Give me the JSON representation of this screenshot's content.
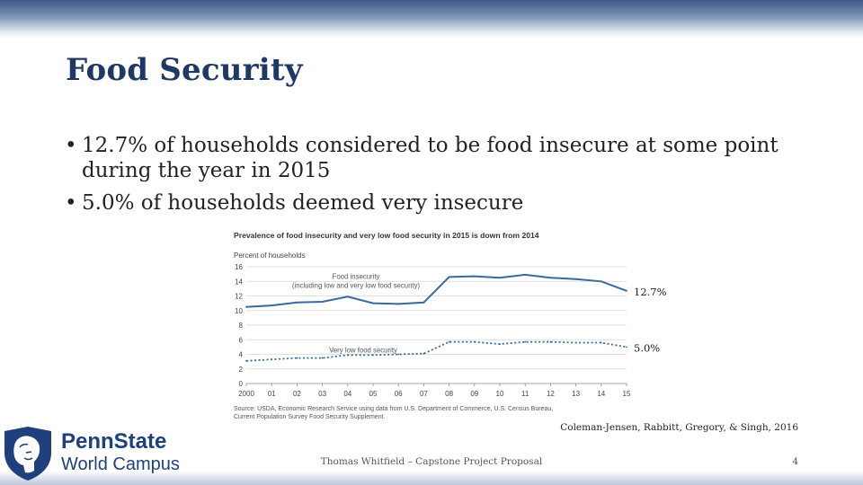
{
  "slide": {
    "title": "Food Security",
    "bullets": [
      "12.7% of households considered to be food insecure at some point during the year in 2015",
      "5.0% of households deemed very insecure"
    ],
    "citation": "Coleman-Jensen, Rabbitt, Gregory, & Singh, 2016",
    "footer": "Thomas Whitfield – Capstone Project Proposal",
    "page_number": "4",
    "bullet_glyph": "•"
  },
  "logo": {
    "line1": "PennState",
    "line2": "World Campus",
    "color": "#1e407c"
  },
  "chart_data": {
    "type": "line",
    "title": "Prevalence of food insecurity and very low food security in 2015 is down from 2014",
    "ylabel": "Percent of households",
    "xlabel": "",
    "ylim": [
      0,
      16
    ],
    "yticks": [
      0,
      2,
      4,
      6,
      8,
      10,
      12,
      14,
      16
    ],
    "grid": true,
    "categories": [
      "2000",
      "01",
      "02",
      "03",
      "04",
      "05",
      "06",
      "07",
      "08",
      "09",
      "10",
      "11",
      "12",
      "13",
      "14",
      "15"
    ],
    "series": [
      {
        "name": "Food insecurity",
        "label_line1": "Food insecurity",
        "label_line2": "(including low and very low food security)",
        "values": [
          10.5,
          10.7,
          11.1,
          11.2,
          11.9,
          11.0,
          10.9,
          11.1,
          14.6,
          14.7,
          14.5,
          14.9,
          14.5,
          14.3,
          14.0,
          12.7
        ],
        "end_label": "12.7%",
        "style": "solid",
        "color": "#3a6a9b"
      },
      {
        "name": "Very low food security",
        "label_line1": "Very low food security",
        "values": [
          3.1,
          3.3,
          3.5,
          3.5,
          3.9,
          3.9,
          4.0,
          4.1,
          5.7,
          5.7,
          5.4,
          5.7,
          5.7,
          5.6,
          5.6,
          5.0
        ],
        "end_label": "5.0%",
        "style": "dotted",
        "color": "#3a6a9b"
      }
    ],
    "source_lines": [
      "Source: USDA, Economic Research Service using data from U.S. Department of Commerce, U.S. Census Bureau,",
      "Current Population Survey Food Security Supplement."
    ]
  }
}
